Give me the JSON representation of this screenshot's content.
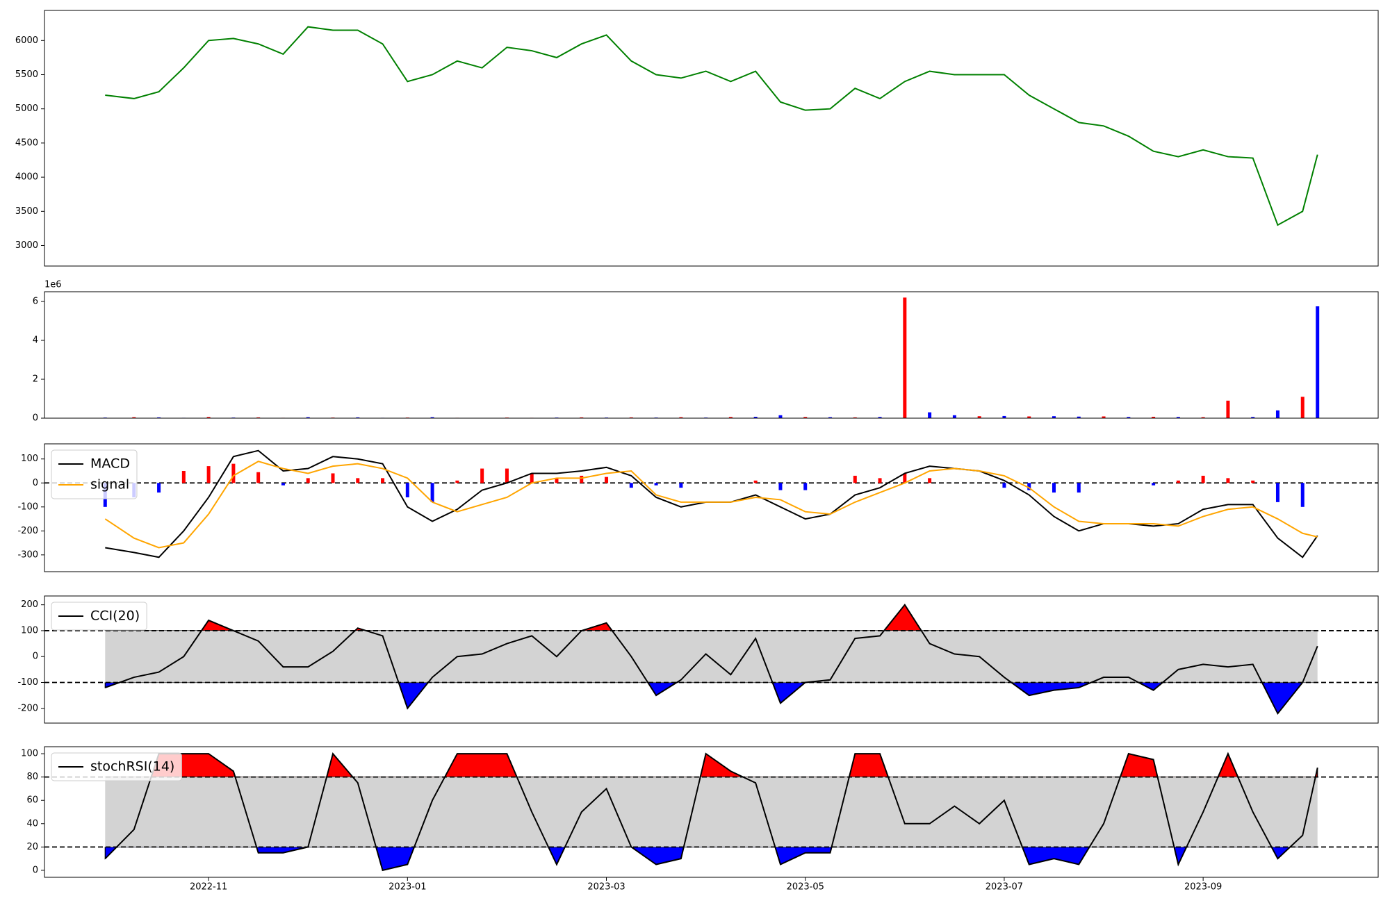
{
  "chart_data": [
    {
      "type": "line",
      "xlim": [
        -1.65,
        11.76
      ],
      "ylim": [
        2700,
        6440
      ],
      "yticks": [
        3000,
        3500,
        4000,
        4500,
        5000,
        5500,
        6000
      ],
      "x": [
        -1.04,
        -0.75,
        -0.5,
        -0.25,
        0,
        0.25,
        0.5,
        0.75,
        1,
        1.25,
        1.5,
        1.75,
        2,
        2.25,
        2.5,
        2.75,
        3,
        3.25,
        3.5,
        3.75,
        4,
        4.25,
        4.5,
        4.75,
        5,
        5.25,
        5.5,
        5.75,
        6,
        6.25,
        6.5,
        6.75,
        7,
        7.25,
        7.5,
        7.75,
        8,
        8.25,
        8.5,
        8.75,
        9,
        9.25,
        9.5,
        9.75,
        10,
        10.25,
        10.5,
        10.75,
        11,
        11.15
      ],
      "series": [
        {
          "color": "green",
          "values": [
            5200,
            5150,
            5250,
            5600,
            6000,
            6030,
            5950,
            5800,
            6200,
            6150,
            6150,
            5950,
            5400,
            5500,
            5700,
            5600,
            5900,
            5850,
            5750,
            5950,
            6080,
            5700,
            5500,
            5450,
            5550,
            5400,
            5550,
            5100,
            4980,
            5000,
            5300,
            5150,
            5400,
            5550,
            5500,
            5500,
            5500,
            5200,
            5000,
            4800,
            4750,
            4600,
            4380,
            4300,
            4400,
            4300,
            4280,
            3300,
            3500,
            4330
          ]
        }
      ]
    },
    {
      "type": "bar",
      "xlim": [
        -1.65,
        11.76
      ],
      "ylim": [
        0,
        6500000
      ],
      "offset_label": "1e6",
      "yticks": [
        {
          "value": 0,
          "label": "0"
        },
        {
          "value": 2000000,
          "label": "2"
        },
        {
          "value": 4000000,
          "label": "4"
        },
        {
          "value": 6000000,
          "label": "6"
        }
      ],
      "x": [
        -1.04,
        -0.75,
        -0.5,
        -0.25,
        0,
        0.25,
        0.5,
        0.75,
        1,
        1.25,
        1.5,
        1.75,
        2,
        2.25,
        2.5,
        2.75,
        3,
        3.25,
        3.5,
        3.75,
        4,
        4.25,
        4.5,
        4.75,
        5,
        5.25,
        5.5,
        5.75,
        6,
        6.25,
        6.5,
        6.75,
        7,
        7.25,
        7.5,
        7.75,
        8,
        8.25,
        8.5,
        8.75,
        9,
        9.25,
        9.5,
        9.75,
        10,
        10.25,
        10.5,
        10.75,
        11,
        11.15
      ],
      "values": [
        30000,
        50000,
        40000,
        20000,
        60000,
        30000,
        40000,
        20000,
        50000,
        30000,
        40000,
        20000,
        30000,
        50000,
        20000,
        10000,
        30000,
        20000,
        30000,
        40000,
        30000,
        40000,
        30000,
        50000,
        30000,
        60000,
        70000,
        150000,
        60000,
        50000,
        40000,
        60000,
        6200000,
        300000,
        150000,
        100000,
        110000,
        90000,
        100000,
        80000,
        90000,
        60000,
        70000,
        60000,
        50000,
        900000,
        60000,
        400000,
        1100000,
        5750000
      ],
      "colors": [
        "blue",
        "red",
        "blue",
        "blue",
        "red",
        "blue",
        "red",
        "red",
        "blue",
        "red",
        "blue",
        "blue",
        "red",
        "blue",
        "red",
        "blue",
        "red",
        "red",
        "blue",
        "red",
        "blue",
        "red",
        "blue",
        "red",
        "blue",
        "red",
        "blue",
        "blue",
        "red",
        "blue",
        "red",
        "blue",
        "red",
        "blue",
        "blue",
        "red",
        "blue",
        "red",
        "blue",
        "blue",
        "red",
        "blue",
        "red",
        "blue",
        "red",
        "red",
        "blue",
        "blue",
        "red",
        "blue"
      ]
    },
    {
      "type": "line",
      "xlim": [
        -1.65,
        11.76
      ],
      "ylim": [
        -370,
        163
      ],
      "yticks": [
        -300,
        -200,
        -100,
        0,
        100
      ],
      "hlines": [
        0
      ],
      "legend": "upper left",
      "x": [
        -1.04,
        -0.75,
        -0.5,
        -0.25,
        0,
        0.25,
        0.5,
        0.75,
        1,
        1.25,
        1.5,
        1.75,
        2,
        2.25,
        2.5,
        2.75,
        3,
        3.25,
        3.5,
        3.75,
        4,
        4.25,
        4.5,
        4.75,
        5,
        5.25,
        5.5,
        5.75,
        6,
        6.25,
        6.5,
        6.75,
        7,
        7.25,
        7.5,
        7.75,
        8,
        8.25,
        8.5,
        8.75,
        9,
        9.25,
        9.5,
        9.75,
        10,
        10.25,
        10.5,
        10.75,
        11,
        11.15
      ],
      "series": [
        {
          "type": "bar",
          "positive_color": "red",
          "negative_color": "blue",
          "values": [
            -100,
            -60,
            -40,
            50,
            70,
            80,
            45,
            -10,
            20,
            40,
            20,
            20,
            -60,
            -80,
            10,
            60,
            60,
            40,
            20,
            30,
            25,
            -20,
            -10,
            -20,
            0,
            0,
            10,
            -30,
            -30,
            0,
            30,
            20,
            40,
            20,
            0,
            0,
            -20,
            -30,
            -40,
            -40,
            0,
            0,
            -10,
            10,
            30,
            20,
            10,
            -80,
            -100,
            0
          ]
        },
        {
          "name": "MACD",
          "color": "black",
          "values": [
            -270,
            -290,
            -310,
            -200,
            -60,
            110,
            135,
            50,
            60,
            110,
            100,
            80,
            -100,
            -160,
            -110,
            -30,
            0,
            40,
            40,
            50,
            65,
            30,
            -60,
            -100,
            -80,
            -80,
            -50,
            -100,
            -150,
            -130,
            -50,
            -20,
            40,
            70,
            60,
            50,
            10,
            -50,
            -140,
            -200,
            -170,
            -170,
            -180,
            -170,
            -110,
            -90,
            -90,
            -230,
            -310,
            -220
          ]
        },
        {
          "name": "signal",
          "color": "orange",
          "values": [
            -150,
            -230,
            -270,
            -250,
            -130,
            30,
            90,
            60,
            40,
            70,
            80,
            60,
            20,
            -80,
            -120,
            -90,
            -60,
            0,
            20,
            20,
            40,
            50,
            -50,
            -80,
            -80,
            -80,
            -60,
            -70,
            -120,
            -130,
            -80,
            -40,
            0,
            50,
            60,
            50,
            30,
            -20,
            -100,
            -160,
            -170,
            -170,
            -170,
            -180,
            -140,
            -110,
            -100,
            -150,
            -210,
            -225
          ]
        }
      ]
    },
    {
      "type": "line",
      "xlim": [
        -1.65,
        11.76
      ],
      "ylim": [
        -257,
        234
      ],
      "yticks": [
        -200,
        -100,
        0,
        100,
        200
      ],
      "hlines": [
        100,
        -100
      ],
      "legend": "upper left",
      "band_color": "lightgray",
      "above_color": "red",
      "below_color": "blue",
      "x": [
        -1.04,
        -0.75,
        -0.5,
        -0.25,
        0,
        0.25,
        0.5,
        0.75,
        1,
        1.25,
        1.5,
        1.75,
        2,
        2.25,
        2.5,
        2.75,
        3,
        3.25,
        3.5,
        3.75,
        4,
        4.25,
        4.5,
        4.75,
        5,
        5.25,
        5.5,
        5.75,
        6,
        6.25,
        6.5,
        6.75,
        7,
        7.25,
        7.5,
        7.75,
        8,
        8.25,
        8.5,
        8.75,
        9,
        9.25,
        9.5,
        9.75,
        10,
        10.25,
        10.5,
        10.75,
        11,
        11.15
      ],
      "series": [
        {
          "name": "CCI(20)",
          "color": "black",
          "values": [
            -120,
            -80,
            -60,
            0,
            140,
            100,
            60,
            -40,
            -40,
            20,
            110,
            80,
            -200,
            -80,
            0,
            10,
            50,
            80,
            0,
            100,
            130,
            0,
            -150,
            -90,
            10,
            -70,
            70,
            -180,
            -100,
            -90,
            70,
            80,
            200,
            50,
            10,
            0,
            -80,
            -150,
            -130,
            -120,
            -80,
            -80,
            -130,
            -50,
            -30,
            -40,
            -30,
            -220,
            -100,
            40
          ]
        }
      ]
    },
    {
      "type": "line",
      "xlim": [
        -1.65,
        11.76
      ],
      "ylim": [
        -6,
        106
      ],
      "yticks": [
        0,
        20,
        40,
        60,
        80,
        100
      ],
      "hlines": [
        80,
        20
      ],
      "legend": "upper left",
      "band_color": "lightgray",
      "above_color": "red",
      "below_color": "blue",
      "xticks": [
        {
          "value": 0,
          "label": "2022-11"
        },
        {
          "value": 2,
          "label": "2023-01"
        },
        {
          "value": 4,
          "label": "2023-03"
        },
        {
          "value": 6,
          "label": "2023-05"
        },
        {
          "value": 8,
          "label": "2023-07"
        },
        {
          "value": 10,
          "label": "2023-09"
        }
      ],
      "x": [
        -1.04,
        -0.75,
        -0.5,
        -0.25,
        0,
        0.25,
        0.5,
        0.75,
        1,
        1.25,
        1.5,
        1.75,
        2,
        2.25,
        2.5,
        2.75,
        3,
        3.25,
        3.5,
        3.75,
        4,
        4.25,
        4.5,
        4.75,
        5,
        5.25,
        5.5,
        5.75,
        6,
        6.25,
        6.5,
        6.75,
        7,
        7.25,
        7.5,
        7.75,
        8,
        8.25,
        8.5,
        8.75,
        9,
        9.25,
        9.5,
        9.75,
        10,
        10.25,
        10.5,
        10.75,
        11,
        11.15
      ],
      "series": [
        {
          "name": "stochRSI(14)",
          "color": "black",
          "values": [
            10,
            35,
            100,
            100,
            100,
            85,
            15,
            15,
            20,
            100,
            75,
            0,
            5,
            60,
            100,
            100,
            100,
            50,
            5,
            50,
            70,
            20,
            5,
            10,
            100,
            85,
            75,
            5,
            15,
            15,
            100,
            100,
            40,
            40,
            55,
            40,
            60,
            5,
            10,
            5,
            40,
            100,
            95,
            5,
            50,
            100,
            50,
            10,
            30,
            88
          ]
        }
      ]
    }
  ]
}
